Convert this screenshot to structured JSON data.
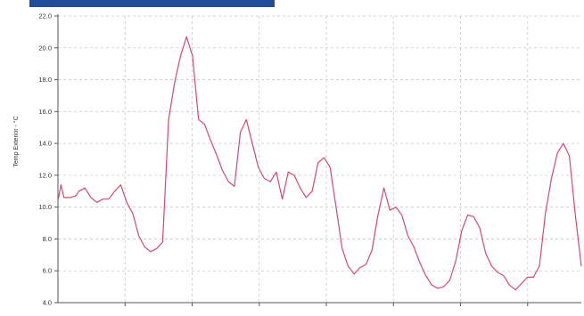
{
  "header": {
    "accent_color": "#1f4d99"
  },
  "chart_data": {
    "type": "line",
    "title": "",
    "xlabel": "",
    "ylabel": "Temp Exterior - °C",
    "ylim": [
      4.0,
      22.0
    ],
    "y_ticks": [
      "4.0",
      "6.0",
      "8.0",
      "10.0",
      "12.0",
      "14.0",
      "16.0",
      "18.0",
      "20.0",
      "22.0"
    ],
    "x_ticks": [
      "",
      "",
      "",
      "",
      "",
      "",
      ""
    ],
    "grid": true,
    "line_color": "#d44a6e",
    "grid_color": "#c8c8c8",
    "series": [
      {
        "name": "",
        "x": [
          0,
          1,
          2,
          4,
          6,
          7,
          9,
          11,
          13,
          15,
          17,
          19,
          21,
          23,
          25,
          27,
          29,
          31,
          33,
          35,
          37,
          39,
          41,
          43,
          45,
          47,
          49,
          51,
          53,
          55,
          57,
          59,
          61,
          63,
          65,
          67,
          69,
          71,
          73,
          75,
          77,
          79,
          81,
          83,
          85,
          87,
          89,
          91,
          93,
          95,
          97,
          99,
          101,
          103,
          105,
          107,
          109,
          111,
          113,
          115,
          117,
          119,
          121,
          123,
          125,
          127,
          129,
          131,
          133,
          135,
          137,
          139,
          141,
          143,
          145,
          147,
          149,
          151,
          153,
          155,
          157,
          159,
          161,
          163,
          165,
          167,
          169,
          171,
          173,
          175
        ],
        "values": [
          10.4,
          11.4,
          10.6,
          10.6,
          10.7,
          11.0,
          11.2,
          10.6,
          10.3,
          10.5,
          10.5,
          11.0,
          11.4,
          10.3,
          9.6,
          8.2,
          7.5,
          7.2,
          7.4,
          7.8,
          15.5,
          17.8,
          19.5,
          20.7,
          19.5,
          15.5,
          15.2,
          14.2,
          13.3,
          12.3,
          11.6,
          11.3,
          14.7,
          15.5,
          14.0,
          12.5,
          11.8,
          11.6,
          12.2,
          10.5,
          12.2,
          12.0,
          11.2,
          10.6,
          11.0,
          12.8,
          13.1,
          12.5,
          10.0,
          7.4,
          6.3,
          5.8,
          6.2,
          6.4,
          7.3,
          9.5,
          11.2,
          9.8,
          10.0,
          9.5,
          8.2,
          7.5,
          6.5,
          5.7,
          5.1,
          4.9,
          5.0,
          5.4,
          6.6,
          8.5,
          9.5,
          9.4,
          8.7,
          7.1,
          6.3,
          5.9,
          5.7,
          5.1,
          4.8,
          5.2,
          5.6,
          5.6,
          6.3,
          9.6,
          11.8,
          13.4,
          14.0,
          13.2,
          9.5,
          6.3
        ]
      }
    ]
  }
}
